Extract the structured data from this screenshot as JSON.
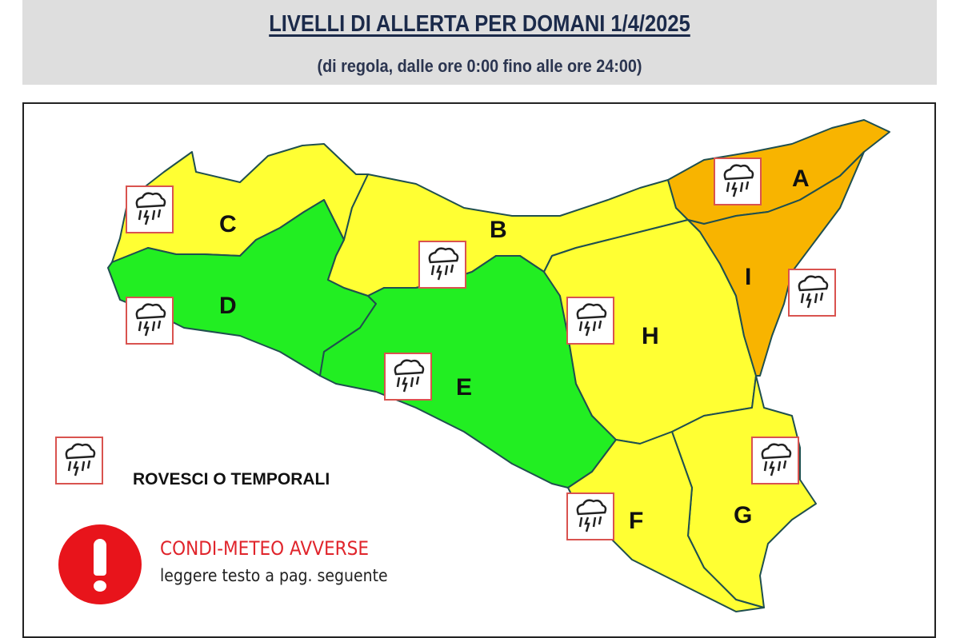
{
  "header": {
    "title": "LIVELLI DI ALLERTA PER DOMANI 1/4/2025",
    "subtitle": "(di regola, dalle ore 0:00 fino alle ore 24:00)"
  },
  "colors": {
    "yellow": "#ffff33",
    "green": "#22ee22",
    "orange": "#f8b400",
    "icon_border": "#d9534f",
    "warning_red": "#e8141b"
  },
  "zones": [
    {
      "id": "A",
      "label": "A",
      "level": "orange",
      "storm_icon": true
    },
    {
      "id": "B",
      "label": "B",
      "level": "yellow",
      "storm_icon": true
    },
    {
      "id": "C",
      "label": "C",
      "level": "yellow",
      "storm_icon": true
    },
    {
      "id": "D",
      "label": "D",
      "level": "green",
      "storm_icon": true
    },
    {
      "id": "E",
      "label": "E",
      "level": "green",
      "storm_icon": true
    },
    {
      "id": "F",
      "label": "F",
      "level": "yellow",
      "storm_icon": true
    },
    {
      "id": "G",
      "label": "G",
      "level": "yellow",
      "storm_icon": true
    },
    {
      "id": "H",
      "label": "H",
      "level": "yellow",
      "storm_icon": true
    },
    {
      "id": "I",
      "label": "I",
      "level": "orange",
      "storm_icon": true
    }
  ],
  "legend": {
    "storm_icon": "thunderstorm-icon",
    "storm_label": "ROVESCI O TEMPORALI",
    "warning_icon": "exclamation-icon",
    "warning_title": "CONDI-METEO AVVERSE",
    "warning_text": "leggere testo a pag. seguente"
  }
}
